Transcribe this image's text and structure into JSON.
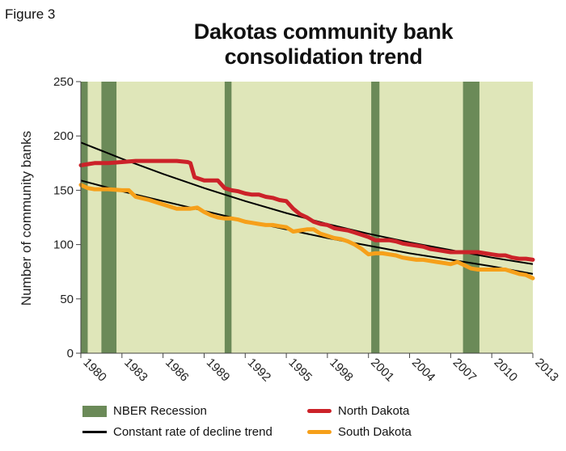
{
  "figure_label": "Figure 3",
  "chart_data": {
    "type": "line",
    "title_line1": "Dakotas community bank",
    "title_line2": "consolidation trend",
    "ylabel": "Number of community banks",
    "xlabel": "",
    "xlim": [
      1980,
      2013
    ],
    "ylim": [
      0,
      250
    ],
    "y_ticks": [
      0,
      50,
      100,
      150,
      200,
      250
    ],
    "x_ticks": [
      "1980",
      "1983",
      "1986",
      "1989",
      "1992",
      "1995",
      "1998",
      "2001",
      "2004",
      "2007",
      "2010",
      "2013"
    ],
    "grid": false,
    "background_color": "#dfe6b9",
    "recessions": [
      {
        "start": 1980.0,
        "end": 1980.5
      },
      {
        "start": 1981.5,
        "end": 1982.6
      },
      {
        "start": 1990.5,
        "end": 1991.0
      },
      {
        "start": 2001.2,
        "end": 2001.8
      },
      {
        "start": 2007.9,
        "end": 2009.1
      }
    ],
    "trends": [
      {
        "name": "North Dakota trend",
        "x": [
          1980,
          1983,
          1986,
          1989,
          1992,
          1995,
          1998,
          2001,
          2004,
          2007,
          2010,
          2013
        ],
        "y": [
          194,
          179,
          165,
          152,
          140,
          129,
          119,
          110,
          102,
          95,
          88,
          82
        ]
      },
      {
        "name": "South Dakota trend",
        "x": [
          1980,
          1983,
          1986,
          1989,
          1992,
          1995,
          1998,
          2001,
          2004,
          2007,
          2010,
          2013
        ],
        "y": [
          159,
          149,
          140,
          131,
          122,
          114,
          106,
          99,
          92,
          86,
          80,
          73
        ]
      }
    ],
    "series": [
      {
        "name": "North Dakota",
        "color": "#cc2229",
        "x": [
          1980,
          1980.5,
          1981,
          1982,
          1983,
          1984,
          1985,
          1986,
          1987,
          1987.8,
          1988,
          1988.3,
          1989,
          1989.5,
          1990,
          1990.5,
          1991,
          1991.5,
          1992,
          1992.5,
          1993,
          1993.5,
          1994,
          1994.5,
          1995,
          1995.5,
          1996,
          1996.5,
          1997,
          1997.5,
          1998,
          1998.5,
          1999,
          1999.5,
          2000,
          2000.5,
          2001,
          2001.5,
          2002,
          2002.5,
          2003,
          2003.5,
          2004,
          2004.5,
          2005,
          2005.5,
          2006,
          2006.5,
          2007,
          2007.5,
          2008,
          2008.5,
          2009,
          2009.5,
          2010,
          2010.5,
          2011,
          2011.5,
          2012,
          2012.5,
          2013
        ],
        "y": [
          173,
          174,
          175,
          175,
          176,
          177,
          177,
          177,
          177,
          176,
          175,
          162,
          159,
          159,
          159,
          152,
          150,
          149,
          147,
          146,
          146,
          144,
          143,
          141,
          140,
          133,
          128,
          125,
          121,
          119,
          118,
          115,
          114,
          113,
          111,
          109,
          107,
          104,
          104,
          104,
          103,
          101,
          100,
          99,
          98,
          96,
          95,
          94,
          93,
          93,
          93,
          93,
          93,
          92,
          91,
          90,
          90,
          88,
          87,
          87,
          86
        ]
      },
      {
        "name": "South Dakota",
        "color": "#f6a01a",
        "x": [
          1980,
          1980.5,
          1981,
          1982,
          1983,
          1983.5,
          1984,
          1985,
          1986,
          1987,
          1988,
          1988.5,
          1989,
          1989.5,
          1990,
          1990.5,
          1991,
          1991.5,
          1992,
          1992.5,
          1993,
          1993.5,
          1994,
          1994.5,
          1995,
          1995.5,
          1996,
          1996.5,
          1997,
          1997.5,
          1998,
          1998.5,
          1999,
          1999.5,
          2000,
          2000.5,
          2001,
          2001.5,
          2002,
          2002.5,
          2003,
          2003.5,
          2004,
          2004.5,
          2005,
          2005.5,
          2006,
          2006.5,
          2007,
          2007.5,
          2008,
          2008.5,
          2009,
          2009.5,
          2010,
          2010.5,
          2011,
          2011.5,
          2012,
          2012.5,
          2013
        ],
        "y": [
          155,
          152,
          151,
          151,
          150,
          150,
          144,
          141,
          137,
          133,
          133,
          134,
          130,
          127,
          125,
          124,
          124,
          123,
          121,
          120,
          119,
          118,
          118,
          117,
          116,
          112,
          113,
          114,
          114,
          110,
          108,
          106,
          105,
          103,
          100,
          96,
          91,
          92,
          92,
          91,
          90,
          88,
          87,
          86,
          86,
          85,
          84,
          83,
          82,
          84,
          81,
          78,
          77,
          77,
          77,
          77,
          77,
          75,
          73,
          72,
          69
        ]
      }
    ],
    "legend": {
      "recession_label": "NBER Recession",
      "trend_label": "Constant rate of decline trend",
      "nd_label": "North Dakota",
      "sd_label": "South Dakota",
      "placement": "bottom"
    },
    "colors": {
      "recession": "#6b8a58",
      "trend": "#000000",
      "north_dakota": "#cc2229",
      "south_dakota": "#f6a01a",
      "plot_background": "#dfe6b9"
    }
  }
}
